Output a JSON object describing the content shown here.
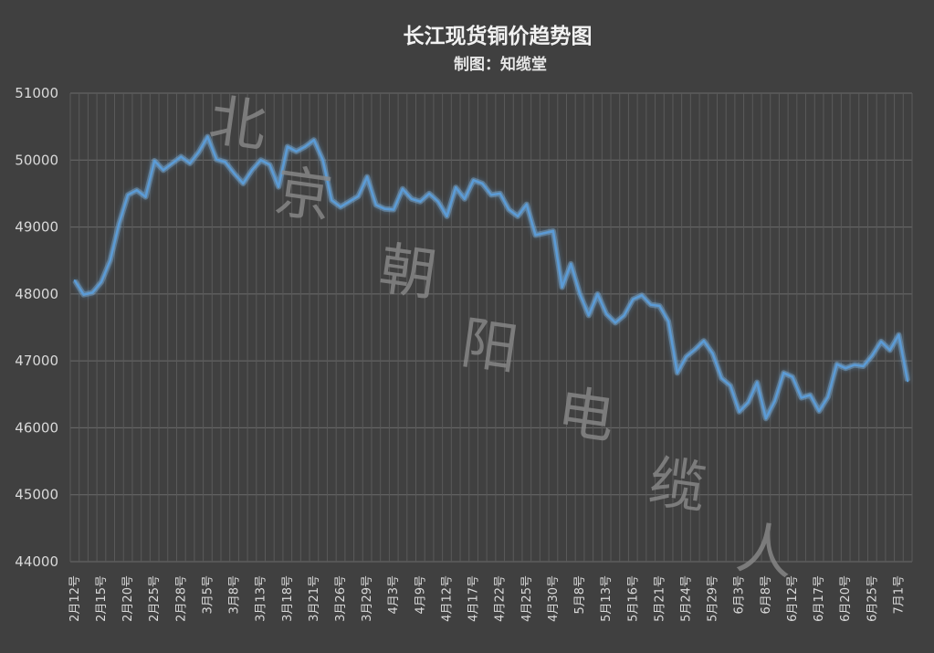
{
  "chart_data": {
    "type": "line",
    "title": "长江现货铜价趋势图",
    "subtitle": "制图：知缆堂",
    "xlabel": "",
    "ylabel": "",
    "ylim": [
      44000,
      51000
    ],
    "yticks": [
      51000,
      50000,
      49000,
      48000,
      47000,
      46000,
      45000,
      44000
    ],
    "grid": true,
    "legend": "none",
    "line_color": "#5b9bd5",
    "x_tick_labels": [
      "2月12号",
      "2月15号",
      "2月20号",
      "2月25号",
      "2月28号",
      "3月5号",
      "3月8号",
      "3月13号",
      "3月18号",
      "3月21号",
      "3月26号",
      "3月29号",
      "4月3号",
      "4月9号",
      "4月12号",
      "4月17号",
      "4月22号",
      "4月25号",
      "4月30号",
      "5月8号",
      "5月13号",
      "5月16号",
      "5月21号",
      "5月24号",
      "5月29号",
      "6月3号",
      "6月8号",
      "6月12号",
      "6月17号",
      "6月20号",
      "6月25号",
      "7月1号"
    ],
    "series": [
      {
        "values": [
          48200,
          47990,
          48020,
          48180,
          48500,
          49050,
          49480,
          49550,
          49450,
          49990,
          49850,
          49950,
          50050,
          49950,
          50120,
          50350,
          50010,
          49970,
          49800,
          49650,
          49850,
          50000,
          49930,
          49600,
          50200,
          50130,
          50200,
          50300,
          50000,
          49400,
          49300,
          49380,
          49460,
          49750,
          49330,
          49270,
          49260,
          49570,
          49420,
          49380,
          49500,
          49380,
          49160,
          49590,
          49420,
          49700,
          49650,
          49480,
          49500,
          49260,
          49160,
          49340,
          48880,
          48910,
          48940,
          48100,
          48450,
          48000,
          47680,
          48000,
          47700,
          47570,
          47680,
          47920,
          47980,
          47840,
          47820,
          47590,
          46820,
          47060,
          47170,
          47300,
          47110,
          46740,
          46630,
          46240,
          46380,
          46680,
          46140,
          46400,
          46820,
          46760,
          46450,
          46490,
          46250,
          46460,
          46950,
          46890,
          46940,
          46920,
          47080,
          47290,
          47160,
          47390,
          46700
        ]
      }
    ],
    "watermark": "北京朝阳电缆人"
  }
}
